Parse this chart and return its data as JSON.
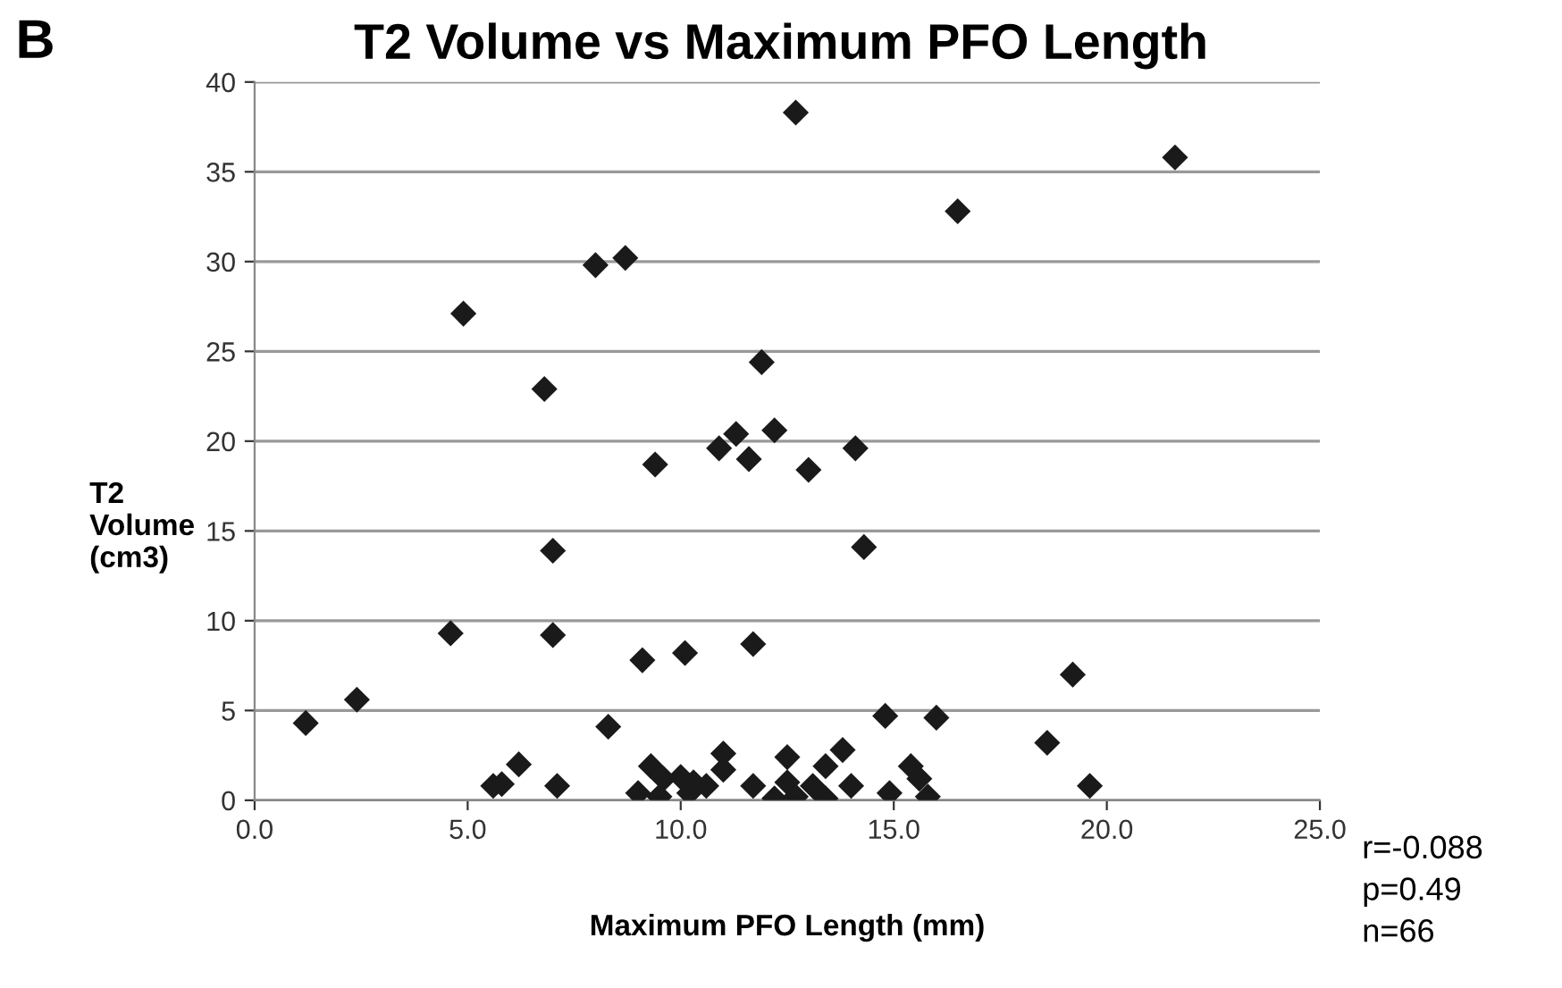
{
  "chart_data": {
    "type": "scatter",
    "title": "T2 Volume vs Maximum PFO Length",
    "xlabel": "Maximum PFO Length (mm)",
    "ylabel": "T2\nVolume\n(cm3)",
    "annotations": [
      "B",
      "r=-0.088\np=0.49\nn=66"
    ],
    "x": [
      12.7,
      21.6,
      16.5,
      8.0,
      8.7,
      4.9,
      6.8,
      11.9,
      10.9,
      11.3,
      11.6,
      12.2,
      9.4,
      13.0,
      14.1,
      7.0,
      14.3,
      4.6,
      7.0,
      9.1,
      10.1,
      11.7,
      19.2,
      1.2,
      2.4,
      8.3,
      5.6,
      5.8,
      6.2,
      7.1,
      9.0,
      9.3,
      9.6,
      9.5,
      10.0,
      10.2,
      10.3,
      10.6,
      11.0,
      11.0,
      11.7,
      12.2,
      12.5,
      12.5,
      12.7,
      13.1,
      13.4,
      13.4,
      13.8,
      14.0,
      14.8,
      14.9,
      15.4,
      15.6,
      15.8,
      16.0,
      18.6,
      19.6
    ],
    "values": [
      38.3,
      35.8,
      32.8,
      29.8,
      30.2,
      27.1,
      22.9,
      24.4,
      19.6,
      20.4,
      19.0,
      20.6,
      18.7,
      18.4,
      19.6,
      13.9,
      14.1,
      9.3,
      9.2,
      7.8,
      8.2,
      8.7,
      7.0,
      4.3,
      5.6,
      4.1,
      0.8,
      0.9,
      2.0,
      0.8,
      0.4,
      1.9,
      1.2,
      0.2,
      1.3,
      0.4,
      1.0,
      0.8,
      2.6,
      1.7,
      0.8,
      0.1,
      2.4,
      1.0,
      0.2,
      0.8,
      0.1,
      1.9,
      2.8,
      0.8,
      4.7,
      0.4,
      1.9,
      1.2,
      0.2,
      4.6,
      3.2,
      0.8
    ],
    "color": "#1a1a1a",
    "marker": "diamond",
    "grid": "y",
    "xlim": [
      0,
      25
    ],
    "xticks": [
      {
        "value": 0,
        "label": "0.0"
      },
      {
        "value": 5,
        "label": "5.0"
      },
      {
        "value": 10,
        "label": "10.0"
      },
      {
        "value": 15,
        "label": "15.0"
      },
      {
        "value": 20,
        "label": "20.0"
      },
      {
        "value": 25,
        "label": "25.0"
      }
    ],
    "ylim": [
      0,
      40
    ],
    "yticks": [
      0,
      5,
      10,
      15,
      20,
      25,
      30,
      35,
      40
    ]
  }
}
